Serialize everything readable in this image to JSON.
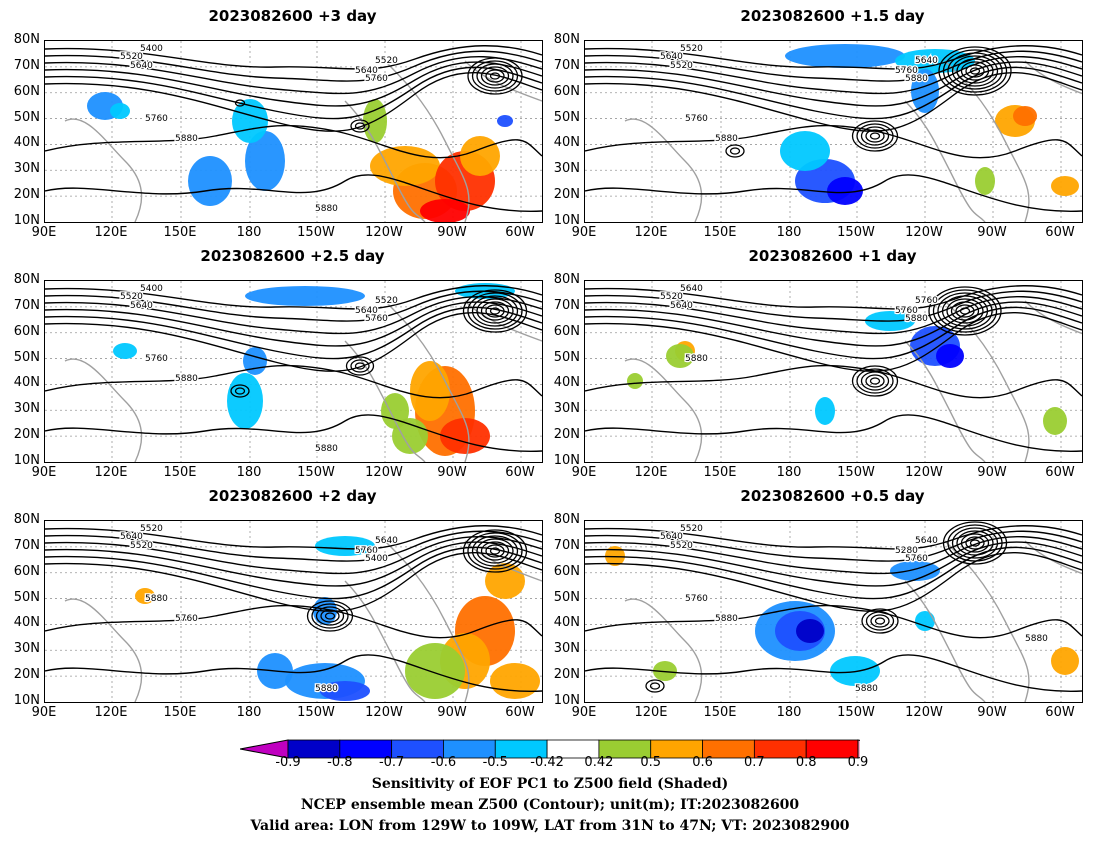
{
  "panels": [
    {
      "title": "2023082600  +3 day",
      "contours": [
        "5400",
        "5520",
        "5640",
        "5520",
        "5640",
        "5760",
        "5760",
        "5880",
        "5880"
      ]
    },
    {
      "title": "2023082600  +1.5 day",
      "contours": [
        "5520",
        "5640",
        "5520",
        "5640",
        "5760",
        "5880",
        "5760",
        "5880"
      ]
    },
    {
      "title": "2023082600  +2.5 day",
      "contours": [
        "5400",
        "5520",
        "5640",
        "5520",
        "5640",
        "5760",
        "5760",
        "5880",
        "5880"
      ]
    },
    {
      "title": "2023082600  +1 day",
      "contours": [
        "5640",
        "5520",
        "5640",
        "5760",
        "5760",
        "5880",
        "5880"
      ]
    },
    {
      "title": "2023082600  +2 day",
      "contours": [
        "5520",
        "5640",
        "5520",
        "5640",
        "5760",
        "5400",
        "5880",
        "5760",
        "5880"
      ]
    },
    {
      "title": "2023082600  +0.5 day",
      "contours": [
        "5520",
        "5640",
        "5520",
        "5640",
        "5280",
        "5760",
        "5760",
        "5880",
        "5880",
        "5880"
      ]
    }
  ],
  "axes": {
    "lat_labels": [
      "80N",
      "70N",
      "60N",
      "50N",
      "40N",
      "30N",
      "20N",
      "10N"
    ],
    "lon_labels": [
      "90E",
      "120E",
      "150E",
      "180",
      "150W",
      "120W",
      "90W",
      "60W"
    ]
  },
  "colorbar": {
    "labels": [
      "-0.9",
      "-0.8",
      "-0.7",
      "-0.6",
      "-0.5",
      "-0.42",
      "0.42",
      "0.5",
      "0.6",
      "0.7",
      "0.8",
      "0.9"
    ],
    "colors": [
      "#c000c0",
      "#0000c8",
      "#0000ff",
      "#1e50ff",
      "#1e90ff",
      "#00c8ff",
      "#ffffff",
      "#9acd32",
      "#ffa500",
      "#ff7000",
      "#ff3000",
      "#ff0000",
      "#ffaacc"
    ]
  },
  "captions": {
    "line1": "Sensitivity of EOF PC1 to Z500 field (Shaded)",
    "line2": "NCEP ensemble mean Z500 (Contour); unit(m); IT:2023082600",
    "line3": "Valid area: LON from 129W to 109W, LAT from 31N to 47N; VT: 2023082900"
  }
}
